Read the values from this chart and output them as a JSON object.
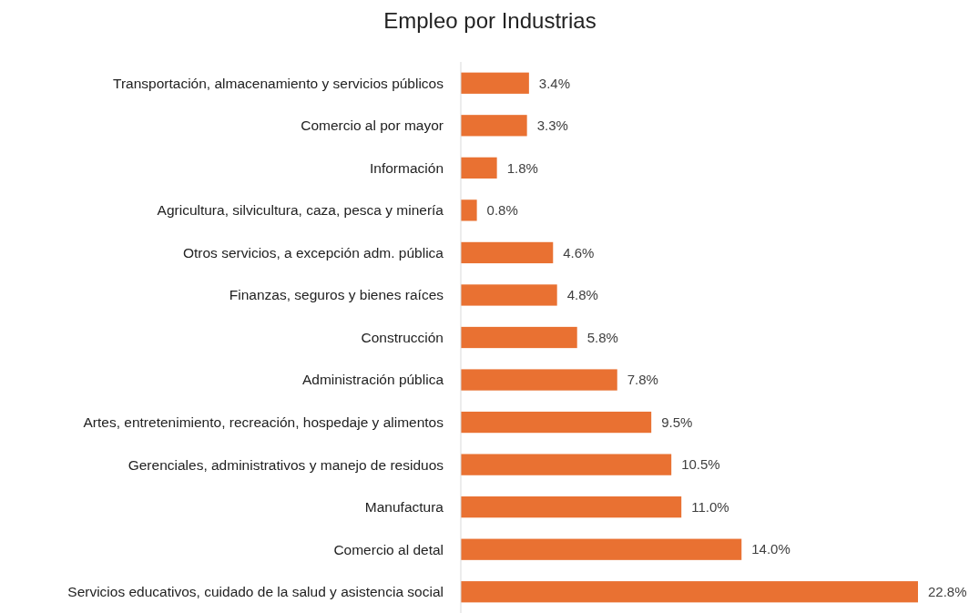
{
  "chart_data": {
    "type": "bar",
    "orientation": "horizontal",
    "title": "Empleo por Industrias",
    "categories": [
      "Transportación, almacenamiento y servicios públicos",
      "Comercio al por mayor",
      "Información",
      "Agricultura, silvicultura, caza, pesca y minería",
      "Otros servicios, a excepción adm. pública",
      "Finanzas, seguros y bienes raíces",
      "Construcción",
      "Administración pública",
      "Artes, entretenimiento, recreación, hospedaje y alimentos",
      "Gerenciales, administrativos y manejo de residuos",
      "Manufactura",
      "Comercio al detal",
      "Servicios educativos, cuidado de la salud y asistencia social"
    ],
    "values": [
      3.4,
      3.3,
      1.8,
      0.8,
      4.6,
      4.8,
      5.8,
      7.8,
      9.5,
      10.5,
      11.0,
      14.0,
      22.8
    ],
    "value_labels": [
      "3.4%",
      "3.3%",
      "1.8%",
      "0.8%",
      "4.6%",
      "4.8%",
      "5.8%",
      "7.8%",
      "9.5%",
      "10.5%",
      "11.0%",
      "14.0%",
      "22.8%"
    ],
    "color": "#e97132",
    "xlim": [
      0,
      22.8
    ]
  }
}
